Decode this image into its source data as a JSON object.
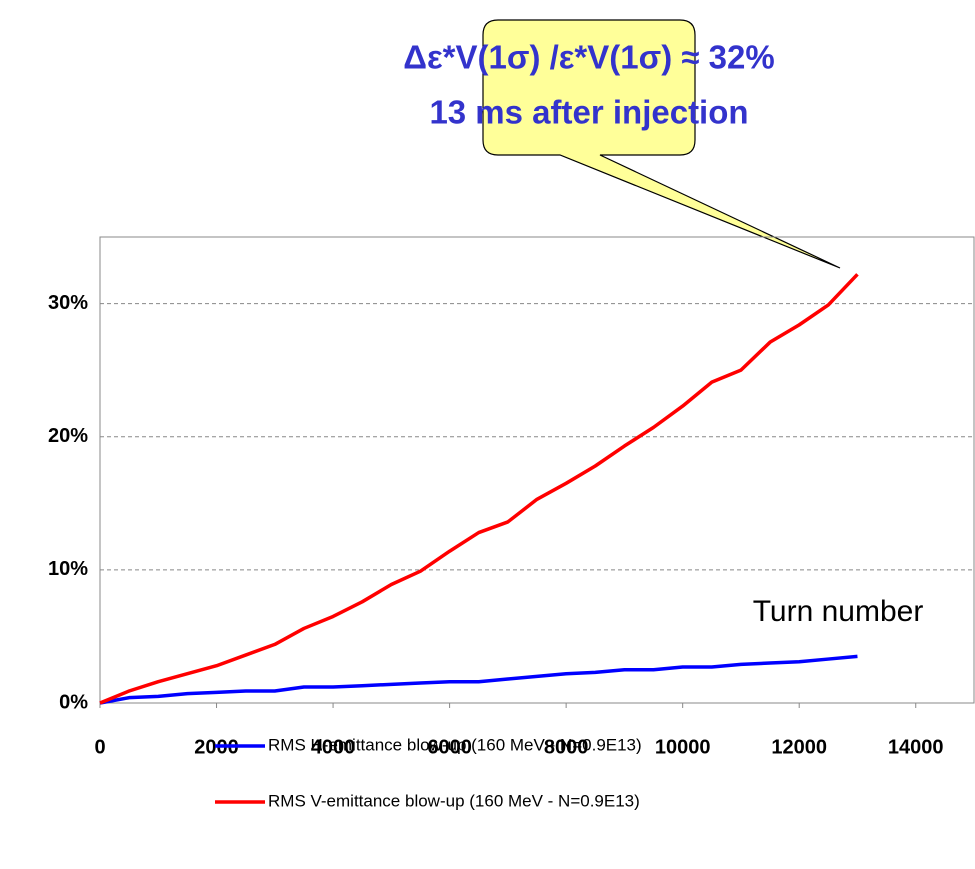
{
  "chart_data": {
    "type": "line",
    "annotation": [
      "Δε*V(1σ) /ε*V(1σ) ≈ 32%",
      "13 ms after injection"
    ],
    "xlabel": "Turn number",
    "x": [
      0,
      500,
      1000,
      1500,
      2000,
      2500,
      3000,
      3500,
      4000,
      4500,
      5000,
      5500,
      6000,
      6500,
      7000,
      7500,
      8000,
      8500,
      9000,
      9500,
      10000,
      10500,
      11000,
      11500,
      12000,
      12500,
      13000
    ],
    "series": [
      {
        "name": "RMS H-emittance blow-up (160 MeV - N=0.9E13)",
        "color": "#0000ff",
        "values": [
          0,
          0.4,
          0.5,
          0.7,
          0.8,
          0.9,
          0.9,
          1.2,
          1.2,
          1.3,
          1.4,
          1.5,
          1.6,
          1.6,
          1.8,
          2.0,
          2.2,
          2.3,
          2.5,
          2.5,
          2.7,
          2.7,
          2.9,
          3.0,
          3.1,
          3.3,
          3.5
        ]
      },
      {
        "name": "RMS V-emittance blow-up (160 MeV - N=0.9E13)",
        "color": "#ff0000",
        "values": [
          0,
          0.9,
          1.6,
          2.2,
          2.8,
          3.6,
          4.4,
          5.6,
          6.5,
          7.6,
          8.9,
          9.9,
          11.4,
          12.8,
          13.6,
          15.3,
          16.5,
          17.8,
          19.3,
          20.7,
          22.3,
          24.1,
          25.0,
          27.1,
          28.4,
          29.9,
          32.2
        ]
      }
    ],
    "xlim": [
      0,
      15000
    ],
    "xticks": [
      0,
      2000,
      4000,
      6000,
      8000,
      10000,
      12000,
      14000
    ],
    "ylim": [
      0,
      35
    ],
    "yticks": [
      {
        "value": 0,
        "label": "0%"
      },
      {
        "value": 10,
        "label": "10%"
      },
      {
        "value": 20,
        "label": "20%"
      },
      {
        "value": 30,
        "label": "30%"
      }
    ],
    "grid": true,
    "legend": "bottom"
  }
}
